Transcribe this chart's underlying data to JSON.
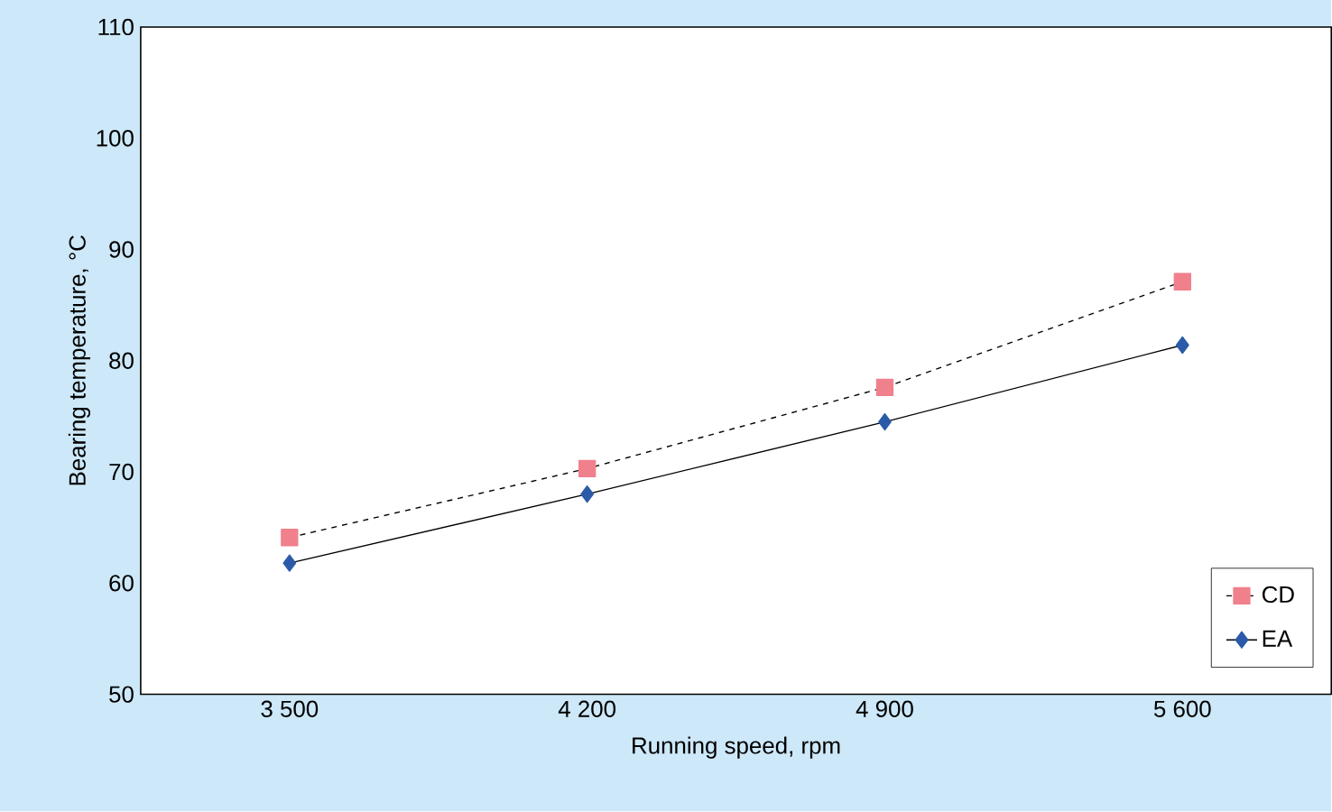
{
  "chart_data": {
    "type": "line",
    "xlabel": "Running speed, rpm",
    "ylabel": "Bearing temperature, °C",
    "categories": [
      "3 500",
      "4 200",
      "4 900",
      "5 600"
    ],
    "series": [
      {
        "name": "CD",
        "color": "#f0808c",
        "values": [
          64.1,
          70.3,
          77.6,
          87.1
        ],
        "marker": "square",
        "line_style": "dashed"
      },
      {
        "name": "EA",
        "color": "#2b5ba8",
        "values": [
          61.8,
          68.0,
          74.5,
          81.4
        ],
        "marker": "diamond",
        "line_style": "solid"
      }
    ],
    "ylim": [
      50,
      110
    ],
    "yticks": [
      50,
      60,
      70,
      80,
      90,
      100,
      110
    ],
    "grid": false,
    "legend": "bottom right"
  }
}
